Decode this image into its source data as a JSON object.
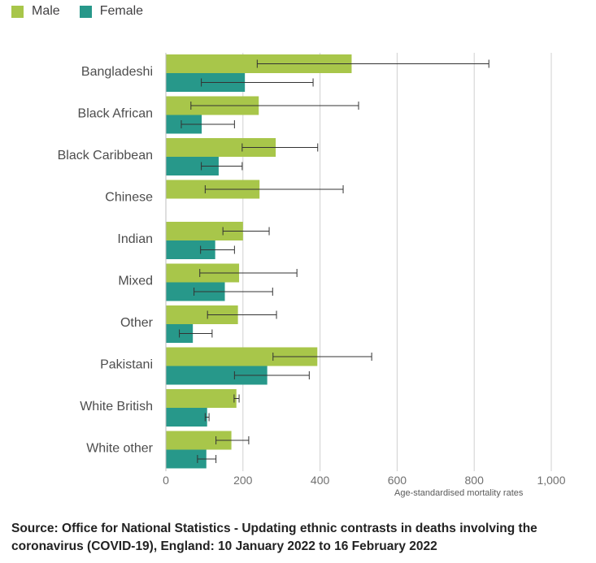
{
  "chart_data": {
    "type": "bar",
    "orientation": "horizontal",
    "categories": [
      "Bangladeshi",
      "Black African",
      "Black Caribbean",
      "Chinese",
      "Indian",
      "Mixed",
      "Other",
      "Pakistani",
      "White British",
      "White other"
    ],
    "series": [
      {
        "name": "Male",
        "color": "#a8c64a",
        "values": [
          482,
          241,
          285,
          243,
          200,
          190,
          187,
          393,
          183,
          170
        ],
        "ci_low": [
          237,
          65,
          198,
          102,
          148,
          88,
          108,
          278,
          177,
          130
        ],
        "ci_high": [
          838,
          500,
          394,
          460,
          268,
          340,
          287,
          534,
          190,
          215
        ]
      },
      {
        "name": "Female",
        "color": "#27988a",
        "values": [
          205,
          93,
          137,
          null,
          128,
          153,
          70,
          263,
          107,
          105
        ],
        "ci_low": [
          92,
          40,
          92,
          null,
          90,
          73,
          35,
          178,
          102,
          82
        ],
        "ci_high": [
          382,
          178,
          198,
          null,
          178,
          277,
          120,
          372,
          112,
          130
        ]
      }
    ],
    "xlim": [
      0,
      1000
    ],
    "xticks": [
      0,
      200,
      400,
      600,
      800,
      1000
    ],
    "xtick_labels": [
      "0",
      "200",
      "400",
      "600",
      "800",
      "1,000"
    ],
    "xlabel": "Age-standardised mortality rates",
    "grid": "vertical",
    "legend": "top-left"
  },
  "legend": {
    "male_label": "Male",
    "female_label": "Female"
  },
  "source": {
    "text": "Source: Office for National Statistics - Updating ethnic contrasts in deaths involving the coronavirus (COVID-19), England: 10 January 2022 to 16 February 2022"
  }
}
